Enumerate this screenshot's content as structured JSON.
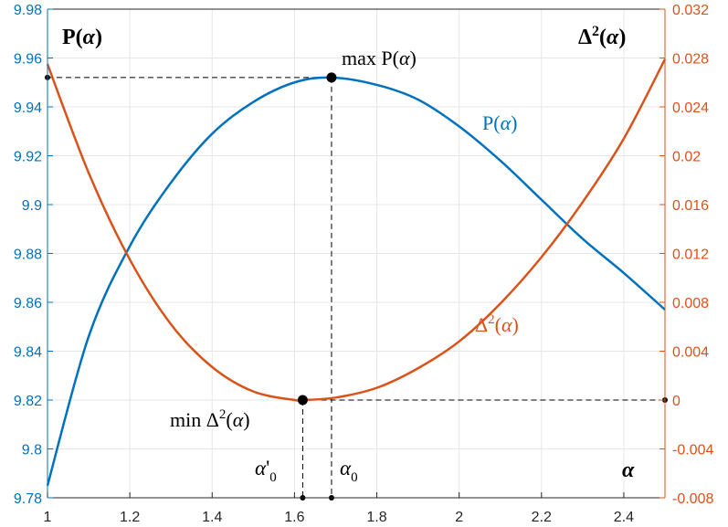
{
  "chart_data": {
    "type": "line",
    "title": "",
    "x_axis": {
      "label": "α",
      "range": [
        1,
        2.5
      ],
      "ticks": [
        1,
        1.2,
        1.4,
        1.6,
        1.8,
        2,
        2.2,
        2.4
      ],
      "tick_labels": [
        "1",
        "1.2",
        "1.4",
        "1.6",
        "1.8",
        "2",
        "2.2",
        "2.4"
      ]
    },
    "y_left": {
      "label": "P(α)",
      "range": [
        9.78,
        9.98
      ],
      "ticks": [
        9.78,
        9.8,
        9.82,
        9.84,
        9.86,
        9.88,
        9.9,
        9.92,
        9.94,
        9.96,
        9.98
      ],
      "tick_labels": [
        "9.78",
        "9.8",
        "9.82",
        "9.84",
        "9.86",
        "9.88",
        "9.9",
        "9.92",
        "9.94",
        "9.96",
        "9.98"
      ],
      "color": "#0072BD"
    },
    "y_right": {
      "label": "Δ²(α)",
      "range": [
        -0.008,
        0.032
      ],
      "ticks": [
        -0.008,
        -0.004,
        0,
        0.004,
        0.008,
        0.012,
        0.016,
        0.02,
        0.024,
        0.028,
        0.032
      ],
      "tick_labels": [
        "-0.008",
        "-0.004",
        "0",
        "0.004",
        "0.008",
        "0.012",
        "0.016",
        "0.02",
        "0.024",
        "0.028",
        "0.032"
      ],
      "color": "#D95319"
    },
    "grid": true,
    "series": [
      {
        "name": "P(α)",
        "axis": "left",
        "color": "#0072BD",
        "x": [
          1.0,
          1.1,
          1.2,
          1.3,
          1.4,
          1.5,
          1.6,
          1.69,
          1.8,
          1.9,
          2.0,
          2.1,
          2.2,
          2.3,
          2.4,
          2.5
        ],
        "y": [
          9.785,
          9.846,
          9.883,
          9.909,
          9.929,
          9.942,
          9.95,
          9.952,
          9.949,
          9.943,
          9.932,
          9.918,
          9.902,
          9.886,
          9.872,
          9.857
        ]
      },
      {
        "name": "Δ²(α)",
        "axis": "right",
        "color": "#D95319",
        "x": [
          1.0,
          1.1,
          1.2,
          1.3,
          1.4,
          1.5,
          1.6,
          1.62,
          1.7,
          1.8,
          1.9,
          2.0,
          2.1,
          2.2,
          2.3,
          2.4,
          2.5
        ],
        "y": [
          0.0275,
          0.0186,
          0.0115,
          0.0062,
          0.0027,
          0.0007,
          0.0,
          0.0,
          0.0002,
          0.001,
          0.0026,
          0.0048,
          0.0079,
          0.0117,
          0.0162,
          0.0214,
          0.0279
        ]
      }
    ],
    "annotations": {
      "max_label": "max P(α)",
      "min_label": "min Δ²(α)",
      "series_label_p": "P(α)",
      "series_label_d": "Δ²(α)",
      "alpha0_prime": "α'₀",
      "alpha0": "α₀",
      "max_point": {
        "x": 1.69,
        "y": 9.952
      },
      "min_point": {
        "x": 1.62,
        "y": 0.0
      }
    }
  }
}
